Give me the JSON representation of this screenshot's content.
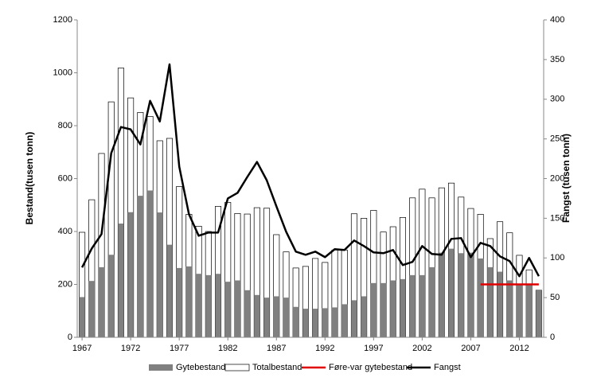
{
  "chart_data": {
    "type": "bar",
    "x": [
      1967,
      1968,
      1969,
      1970,
      1971,
      1972,
      1973,
      1974,
      1975,
      1976,
      1977,
      1978,
      1979,
      1980,
      1981,
      1982,
      1983,
      1984,
      1985,
      1986,
      1987,
      1988,
      1989,
      1990,
      1991,
      1992,
      1993,
      1994,
      1995,
      1996,
      1997,
      1998,
      1999,
      2000,
      2001,
      2002,
      2003,
      2004,
      2005,
      2006,
      2007,
      2008,
      2009,
      2010,
      2011,
      2012,
      2013,
      2014
    ],
    "xlim": [
      1966.5,
      2014.5
    ],
    "xticks": [
      1967,
      1972,
      1977,
      1982,
      1987,
      1992,
      1997,
      2002,
      2007,
      2012
    ],
    "ylabel": "Bestand(tusen tonn)",
    "ylim": [
      0,
      1200
    ],
    "yticks": [
      0,
      200,
      400,
      600,
      800,
      1000,
      1200
    ],
    "y2label": "Fangst (tusen tonn)",
    "y2lim": [
      0,
      400
    ],
    "y2ticks": [
      0,
      50,
      100,
      150,
      200,
      250,
      300,
      350,
      400
    ],
    "series": [
      {
        "name": "Gytebestand",
        "type": "bar",
        "color": "#808080",
        "values": [
          152,
          213,
          265,
          312,
          430,
          473,
          535,
          555,
          472,
          350,
          262,
          268,
          240,
          235,
          240,
          210,
          215,
          178,
          160,
          150,
          155,
          150,
          115,
          108,
          108,
          110,
          113,
          125,
          140,
          155,
          205,
          205,
          215,
          220,
          235,
          235,
          265,
          320,
          335,
          318,
          320,
          298,
          265,
          248,
          215,
          200,
          200,
          178
        ]
      },
      {
        "name": "Totalbestand",
        "type": "bar",
        "color": "#ffffff",
        "values": [
          397,
          520,
          695,
          890,
          1018,
          905,
          850,
          835,
          743,
          752,
          570,
          465,
          420,
          400,
          495,
          510,
          468,
          466,
          490,
          488,
          388,
          323,
          262,
          268,
          298,
          283,
          330,
          330,
          467,
          450,
          480,
          398,
          418,
          453,
          527,
          560,
          527,
          565,
          583,
          530,
          487,
          465,
          373,
          437,
          395,
          310,
          255,
          178
        ]
      },
      {
        "name": "Føre-var gytebestand",
        "type": "line",
        "color": "#e00000",
        "x": [
          2008,
          2014
        ],
        "values": [
          200,
          200
        ]
      },
      {
        "name": "Fangst",
        "type": "line",
        "color": "#000000",
        "axis": "y2",
        "values": [
          88,
          112,
          130,
          232,
          265,
          262,
          243,
          298,
          272,
          344,
          215,
          155,
          128,
          132,
          132,
          175,
          182,
          202,
          221,
          198,
          165,
          133,
          108,
          104,
          108,
          101,
          111,
          110,
          122,
          115,
          107,
          106,
          110,
          91,
          95,
          115,
          105,
          104,
          124,
          125,
          101,
          119,
          115,
          102,
          96,
          77,
          100,
          77
        ]
      }
    ]
  }
}
